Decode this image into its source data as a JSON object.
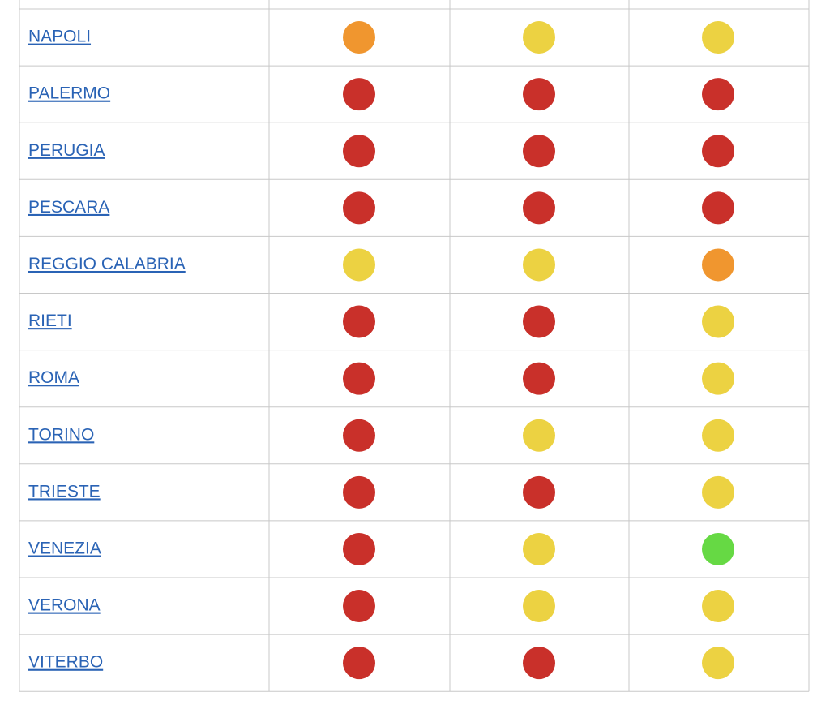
{
  "table": {
    "rows": [
      {
        "city": "NAPOLI",
        "dots": [
          "#f0962f",
          "#ecd242",
          "#ecd242"
        ]
      },
      {
        "city": "PALERMO",
        "dots": [
          "#c9302a",
          "#c9302a",
          "#c9302a"
        ]
      },
      {
        "city": "PERUGIA",
        "dots": [
          "#c9302a",
          "#c9302a",
          "#c9302a"
        ]
      },
      {
        "city": "PESCARA",
        "dots": [
          "#c9302a",
          "#c9302a",
          "#c9302a"
        ]
      },
      {
        "city": "REGGIO CALABRIA",
        "dots": [
          "#ecd242",
          "#ecd242",
          "#f0962f"
        ]
      },
      {
        "city": "RIETI",
        "dots": [
          "#c9302a",
          "#c9302a",
          "#ecd242"
        ]
      },
      {
        "city": "ROMA",
        "dots": [
          "#c9302a",
          "#c9302a",
          "#ecd242"
        ]
      },
      {
        "city": "TORINO",
        "dots": [
          "#c9302a",
          "#ecd242",
          "#ecd242"
        ]
      },
      {
        "city": "TRIESTE",
        "dots": [
          "#c9302a",
          "#c9302a",
          "#ecd242"
        ]
      },
      {
        "city": "VENEZIA",
        "dots": [
          "#c9302a",
          "#ecd242",
          "#66d944"
        ]
      },
      {
        "city": "VERONA",
        "dots": [
          "#c9302a",
          "#ecd242",
          "#ecd242"
        ]
      },
      {
        "city": "VITERBO",
        "dots": [
          "#c9302a",
          "#c9302a",
          "#ecd242"
        ]
      }
    ]
  }
}
